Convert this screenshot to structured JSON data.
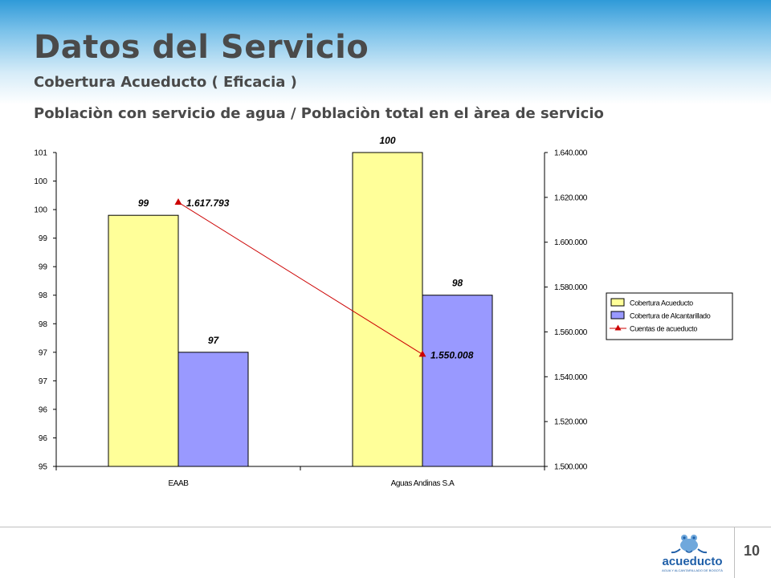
{
  "slide": {
    "title": "Datos del Servicio",
    "subtitle": "Cobertura Acueducto ( Eficacia )",
    "heading": "Poblaciòn con servicio de agua / Poblaciòn total en el àrea de servicio",
    "page_number": "10",
    "logo_text": "acueducto",
    "logo_subtext": "AGUA Y ALCANTARILLADO DE BOGOTÁ"
  },
  "chart_data": {
    "type": "bar",
    "categories": [
      "EAAB",
      "Aguas Andinas S.A"
    ],
    "series": [
      {
        "name": "Cobertura Acueducto",
        "values": [
          99.4,
          100.5
        ],
        "data_labels": [
          "99",
          "100"
        ],
        "color": "#ffff99"
      },
      {
        "name": "Cobertura de Alcantarillado",
        "values": [
          97.0,
          98.0
        ],
        "data_labels": [
          "97",
          "98"
        ],
        "color": "#9999ff"
      }
    ],
    "line_series": {
      "name": "Cuentas de acueducto",
      "values": [
        1617793,
        1550008
      ],
      "data_labels": [
        "1.617.793",
        "1.550.008"
      ],
      "color": "#cc0000",
      "axis": "right"
    },
    "y_left": {
      "ylim": [
        95,
        100.5
      ],
      "tick_labels": [
        "95",
        "96",
        "96",
        "97",
        "97",
        "98",
        "98",
        "99",
        "99",
        "100",
        "100",
        "101"
      ]
    },
    "y_right": {
      "ylim": [
        1500000,
        1640000
      ],
      "tick_labels": [
        "1.500.000",
        "1.520.000",
        "1.540.000",
        "1.560.000",
        "1.580.000",
        "1.600.000",
        "1.620.000",
        "1.640.000"
      ]
    },
    "legend": {
      "placement": "right",
      "items": [
        "Cobertura Acueducto",
        "Cobertura de Alcantarillado",
        "Cuentas de acueducto"
      ]
    },
    "grid": false
  }
}
